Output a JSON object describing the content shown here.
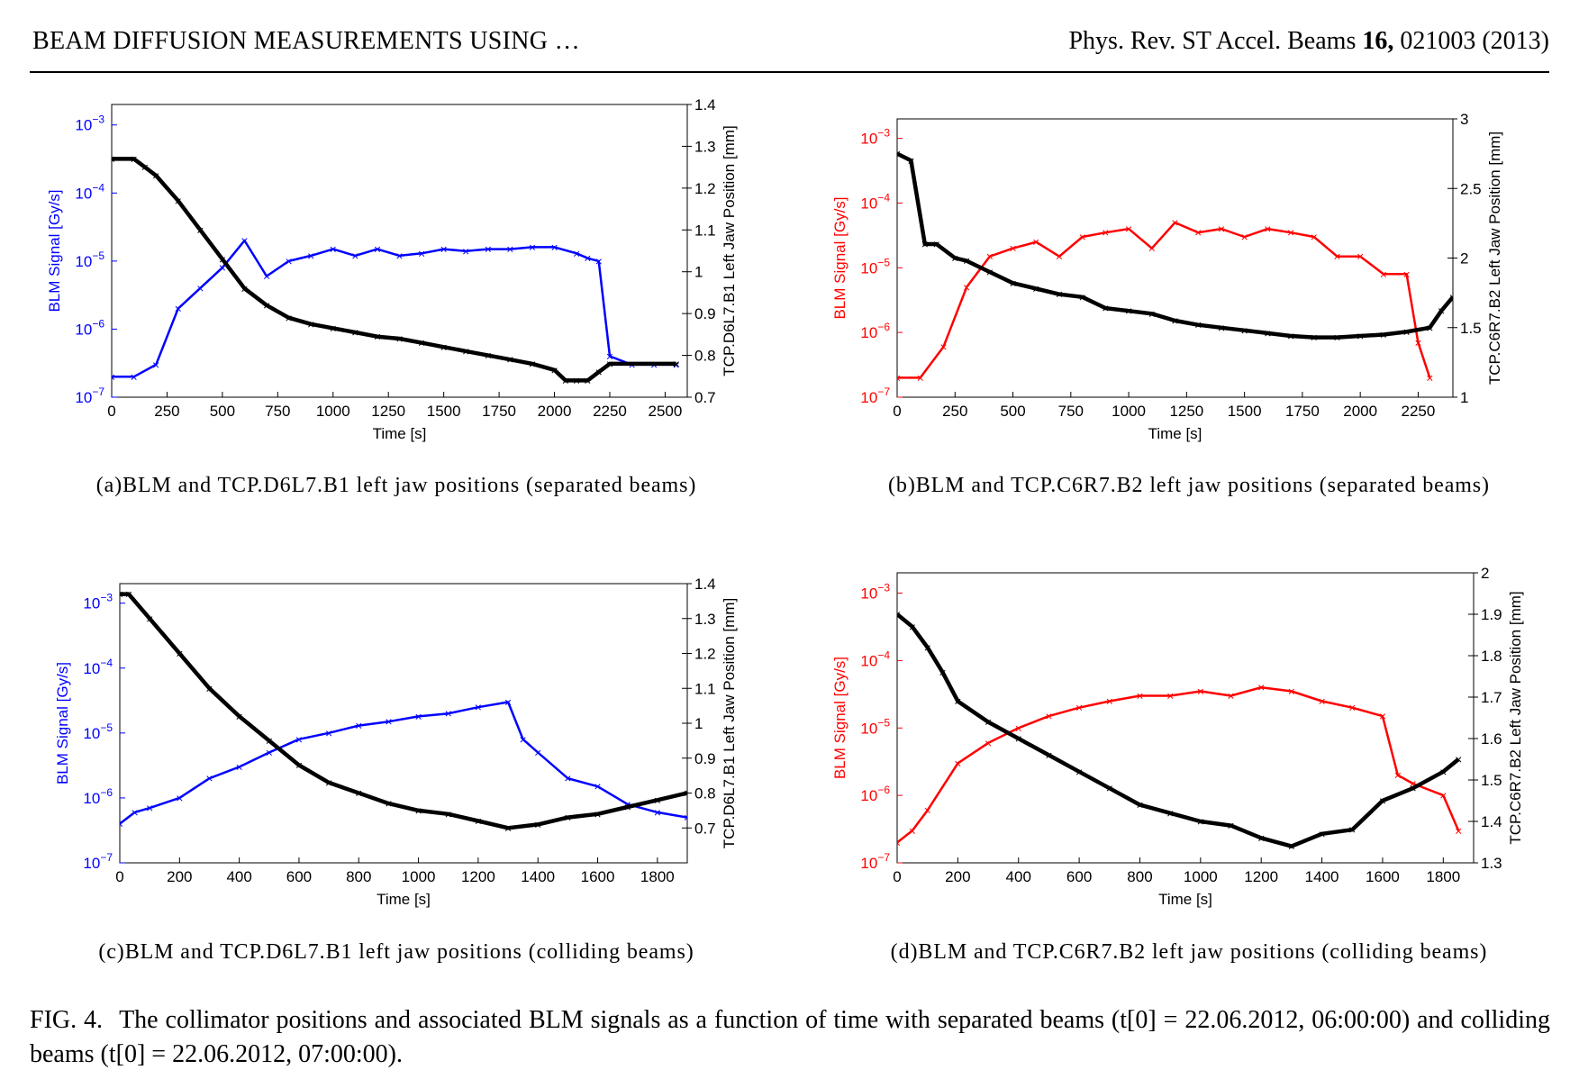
{
  "header": {
    "left": "BEAM DIFFUSION MEASUREMENTS USING …",
    "journal": "Phys. Rev. ST Accel. Beams ",
    "volume": "16,",
    "article": " 021003 (2013)"
  },
  "subcaptions": [
    "(a)BLM and TCP.D6L7.B1 left jaw positions (separated beams)",
    "(b)BLM and TCP.C6R7.B2 left jaw positions (separated beams)",
    "(c)BLM and TCP.D6L7.B1 left jaw positions (colliding beams)",
    "(d)BLM and TCP.C6R7.B2 left jaw positions (colliding beams)"
  ],
  "caption": {
    "label": "FIG. 4.",
    "text": "The collimator positions and associated BLM signals as a function of time with separated beams (t[0] = 22.06.2012, 06:00:00) and colliding beams (t[0] = 22.06.2012, 07:00:00)."
  },
  "chart_data": [
    {
      "panel": "a",
      "type": "line",
      "xlabel": "Time [s]",
      "ylabel_left": "BLM Signal [Gy/s]",
      "ylabel_right": "TCP.D6L7.B1 Left Jaw Position [mm]",
      "xlim": [
        0,
        2600
      ],
      "ylim_left": [
        1e-07,
        0.002
      ],
      "ylim_right": [
        0.7,
        1.4
      ],
      "left_scale": "log",
      "x_ticks": [
        "0",
        "250",
        "500",
        "750",
        "1000",
        "1250",
        "1500",
        "1750",
        "2000",
        "2250",
        "2500"
      ],
      "y_ticks_left": [
        "10^-7",
        "10^-6",
        "10^-5",
        "10^-4",
        "10^-3"
      ],
      "y_ticks_right": [
        "0.7",
        "0.8",
        "0.9",
        "1",
        "1.1",
        "1.2",
        "1.3",
        "1.4"
      ],
      "blm_color": "#0000ff",
      "position_color": "#000000",
      "series": [
        {
          "name": "BLM Signal",
          "axis": "left",
          "x": [
            0,
            100,
            200,
            300,
            400,
            500,
            600,
            700,
            800,
            900,
            1000,
            1100,
            1200,
            1300,
            1400,
            1500,
            1600,
            1700,
            1800,
            1900,
            2000,
            2100,
            2150,
            2200,
            2250,
            2350,
            2450,
            2550
          ],
          "y": [
            2e-07,
            2e-07,
            3e-07,
            2e-06,
            4e-06,
            8e-06,
            2e-05,
            6e-06,
            1e-05,
            1.2e-05,
            1.5e-05,
            1.2e-05,
            1.5e-05,
            1.2e-05,
            1.3e-05,
            1.5e-05,
            1.4e-05,
            1.5e-05,
            1.5e-05,
            1.6e-05,
            1.6e-05,
            1.3e-05,
            1.1e-05,
            1e-05,
            4e-07,
            3e-07,
            3e-07,
            3e-07
          ]
        },
        {
          "name": "Left Jaw Position",
          "axis": "right",
          "x": [
            0,
            100,
            150,
            200,
            300,
            400,
            500,
            600,
            700,
            800,
            900,
            1000,
            1100,
            1200,
            1300,
            1400,
            1500,
            1600,
            1700,
            1800,
            1900,
            2000,
            2050,
            2100,
            2150,
            2200,
            2250,
            2550
          ],
          "y": [
            1.27,
            1.27,
            1.25,
            1.23,
            1.17,
            1.1,
            1.03,
            0.96,
            0.92,
            0.89,
            0.875,
            0.865,
            0.855,
            0.845,
            0.84,
            0.83,
            0.82,
            0.81,
            0.8,
            0.79,
            0.78,
            0.765,
            0.74,
            0.74,
            0.74,
            0.76,
            0.78,
            0.78
          ]
        }
      ]
    },
    {
      "panel": "b",
      "type": "line",
      "xlabel": "Time [s]",
      "ylabel_left": "BLM Signal [Gy/s]",
      "ylabel_right": "TCP.C6R7.B2 Left Jaw Position [mm]",
      "xlim": [
        0,
        2400
      ],
      "ylim_left": [
        1e-07,
        0.002
      ],
      "ylim_right": [
        1,
        3
      ],
      "left_scale": "log",
      "x_ticks": [
        "0",
        "250",
        "500",
        "750",
        "1000",
        "1250",
        "1500",
        "1750",
        "2000",
        "2250"
      ],
      "y_ticks_left": [
        "10^-7",
        "10^-6",
        "10^-5",
        "10^-4",
        "10^-3"
      ],
      "y_ticks_right": [
        "1",
        "1.5",
        "2",
        "2.5",
        "3"
      ],
      "blm_color": "#ff0000",
      "position_color": "#000000",
      "series": [
        {
          "name": "BLM Signal",
          "axis": "left",
          "x": [
            0,
            100,
            200,
            300,
            400,
            500,
            600,
            700,
            800,
            900,
            1000,
            1100,
            1200,
            1300,
            1400,
            1500,
            1600,
            1700,
            1800,
            1900,
            2000,
            2100,
            2200,
            2250,
            2300
          ],
          "y": [
            2e-07,
            2e-07,
            6e-07,
            5e-06,
            1.5e-05,
            2e-05,
            2.5e-05,
            1.5e-05,
            3e-05,
            3.5e-05,
            4e-05,
            2e-05,
            5e-05,
            3.5e-05,
            4e-05,
            3e-05,
            4e-05,
            3.5e-05,
            3e-05,
            1.5e-05,
            1.5e-05,
            8e-06,
            8e-06,
            7e-07,
            2e-07
          ]
        },
        {
          "name": "Left Jaw Position",
          "axis": "right",
          "x": [
            0,
            60,
            120,
            170,
            250,
            300,
            400,
            500,
            600,
            700,
            800,
            900,
            1000,
            1100,
            1200,
            1300,
            1400,
            1500,
            1600,
            1700,
            1800,
            1900,
            2000,
            2100,
            2200,
            2300,
            2350,
            2400
          ],
          "y": [
            2.75,
            2.7,
            2.1,
            2.1,
            2.0,
            1.98,
            1.9,
            1.82,
            1.78,
            1.74,
            1.72,
            1.64,
            1.62,
            1.6,
            1.55,
            1.52,
            1.5,
            1.48,
            1.46,
            1.44,
            1.43,
            1.43,
            1.44,
            1.45,
            1.47,
            1.5,
            1.62,
            1.72
          ]
        }
      ]
    },
    {
      "panel": "c",
      "type": "line",
      "xlabel": "Time [s]",
      "ylabel_left": "BLM Signal [Gy/s]",
      "ylabel_right": "TCP.D6L7.B1 Left Jaw Position [mm]",
      "xlim": [
        0,
        1900
      ],
      "ylim_left": [
        1e-07,
        0.002
      ],
      "ylim_right": [
        0.6,
        1.4
      ],
      "left_scale": "log",
      "x_ticks": [
        "0",
        "200",
        "400",
        "600",
        "800",
        "1000",
        "1200",
        "1400",
        "1600",
        "1800"
      ],
      "y_ticks_left": [
        "10^-7",
        "10^-6",
        "10^-5",
        "10^-4",
        "10^-3"
      ],
      "y_ticks_right": [
        "0.7",
        "0.8",
        "0.9",
        "1",
        "1.1",
        "1.2",
        "1.3",
        "1.4"
      ],
      "blm_color": "#0000ff",
      "position_color": "#000000",
      "series": [
        {
          "name": "BLM Signal",
          "axis": "left",
          "x": [
            0,
            50,
            100,
            200,
            300,
            400,
            500,
            600,
            700,
            800,
            900,
            1000,
            1100,
            1200,
            1300,
            1350,
            1400,
            1500,
            1600,
            1700,
            1800,
            1900
          ],
          "y": [
            4e-07,
            6e-07,
            7e-07,
            1e-06,
            2e-06,
            3e-06,
            5e-06,
            8e-06,
            1e-05,
            1.3e-05,
            1.5e-05,
            1.8e-05,
            2e-05,
            2.5e-05,
            3e-05,
            8e-06,
            5e-06,
            2e-06,
            1.5e-06,
            8e-07,
            6e-07,
            5e-07
          ]
        },
        {
          "name": "Left Jaw Position",
          "axis": "right",
          "x": [
            0,
            30,
            100,
            200,
            300,
            400,
            500,
            600,
            700,
            800,
            900,
            1000,
            1100,
            1200,
            1300,
            1400,
            1500,
            1600,
            1700,
            1800,
            1900
          ],
          "y": [
            1.37,
            1.37,
            1.3,
            1.2,
            1.1,
            1.02,
            0.95,
            0.88,
            0.83,
            0.8,
            0.77,
            0.75,
            0.74,
            0.72,
            0.7,
            0.71,
            0.73,
            0.74,
            0.76,
            0.78,
            0.8
          ]
        }
      ]
    },
    {
      "panel": "d",
      "type": "line",
      "xlabel": "Time [s]",
      "ylabel_left": "BLM Signal [Gy/s]",
      "ylabel_right": "TCP.C6R7.B2 Left Jaw Position [mm]",
      "xlim": [
        0,
        1900
      ],
      "ylim_left": [
        1e-07,
        0.002
      ],
      "ylim_right": [
        1.3,
        2
      ],
      "left_scale": "log",
      "x_ticks": [
        "0",
        "200",
        "400",
        "600",
        "800",
        "1000",
        "1200",
        "1400",
        "1600",
        "1800"
      ],
      "y_ticks_left": [
        "10^-7",
        "10^-6",
        "10^-5",
        "10^-4",
        "10^-3"
      ],
      "y_ticks_right": [
        "1.3",
        "1.4",
        "1.5",
        "1.6",
        "1.7",
        "1.8",
        "1.9",
        "2"
      ],
      "blm_color": "#ff0000",
      "position_color": "#000000",
      "series": [
        {
          "name": "BLM Signal",
          "axis": "left",
          "x": [
            0,
            50,
            100,
            200,
            300,
            400,
            500,
            600,
            700,
            800,
            900,
            1000,
            1100,
            1200,
            1300,
            1400,
            1500,
            1600,
            1650,
            1700,
            1800,
            1850
          ],
          "y": [
            2e-07,
            3e-07,
            6e-07,
            3e-06,
            6e-06,
            1e-05,
            1.5e-05,
            2e-05,
            2.5e-05,
            3e-05,
            3e-05,
            3.5e-05,
            3e-05,
            4e-05,
            3.5e-05,
            2.5e-05,
            2e-05,
            1.5e-05,
            2e-06,
            1.5e-06,
            1e-06,
            3e-07
          ]
        },
        {
          "name": "Left Jaw Position",
          "axis": "right",
          "x": [
            0,
            50,
            100,
            150,
            200,
            300,
            400,
            500,
            600,
            700,
            800,
            900,
            1000,
            1100,
            1200,
            1300,
            1400,
            1500,
            1600,
            1700,
            1800,
            1850
          ],
          "y": [
            1.9,
            1.87,
            1.82,
            1.76,
            1.69,
            1.64,
            1.6,
            1.56,
            1.52,
            1.48,
            1.44,
            1.42,
            1.4,
            1.39,
            1.36,
            1.34,
            1.37,
            1.38,
            1.45,
            1.48,
            1.52,
            1.55
          ]
        }
      ]
    }
  ]
}
